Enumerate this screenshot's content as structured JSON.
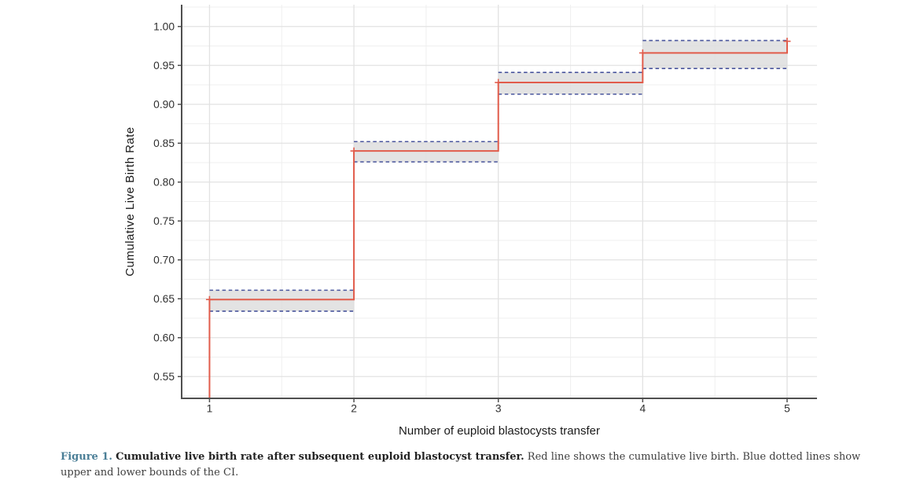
{
  "figure": {
    "caption": {
      "label": "Figure 1.",
      "bold_text": "Cumulative live birth rate after subsequent euploid blastocyst transfer.",
      "body_text": "Red line shows the cumulative live birth. Blue dotted lines show upper and lower bounds of the CI.",
      "label_color": "#4a7e96"
    }
  },
  "chart_data": {
    "type": "step",
    "title": "",
    "xlabel": "Number of euploid blastocysts transfer",
    "ylabel": "Cumulative Live Birth Rate",
    "xlim": [
      0.807,
      5.207
    ],
    "ylim": [
      0.522,
      1.028
    ],
    "grid": true,
    "legend_position": "none",
    "x_ticks": [
      {
        "value": 1,
        "label": "1"
      },
      {
        "value": 2,
        "label": "2"
      },
      {
        "value": 3,
        "label": "3"
      },
      {
        "value": 4,
        "label": "4"
      },
      {
        "value": 5,
        "label": "5"
      }
    ],
    "x_minor_ticks": [
      1.5,
      2.5,
      3.5,
      4.5
    ],
    "y_ticks": [
      {
        "value": 0.55,
        "label": "0.55"
      },
      {
        "value": 0.6,
        "label": "0.60"
      },
      {
        "value": 0.65,
        "label": "0.65"
      },
      {
        "value": 0.7,
        "label": "0.70"
      },
      {
        "value": 0.75,
        "label": "0.75"
      },
      {
        "value": 0.8,
        "label": "0.80"
      },
      {
        "value": 0.85,
        "label": "0.85"
      },
      {
        "value": 0.9,
        "label": "0.90"
      },
      {
        "value": 0.95,
        "label": "0.95"
      },
      {
        "value": 1.0,
        "label": "1.00"
      }
    ],
    "y_minor_ticks": [
      0.525,
      0.575,
      0.625,
      0.675,
      0.725,
      0.775,
      0.825,
      0.875,
      0.925,
      0.975,
      1.025
    ],
    "series": [
      {
        "name": "Cumulative live birth rate",
        "color": "#e15c4b",
        "ci_line_color": "#4a569d",
        "ci_band_color": "#dcdcdc",
        "starts_from_axis_bottom_at_x": 1,
        "steps": [
          {
            "x_start": 1,
            "x_end": 2,
            "estimate": 0.649,
            "ci_lower": 0.634,
            "ci_upper": 0.661
          },
          {
            "x_start": 2,
            "x_end": 3,
            "estimate": 0.84,
            "ci_lower": 0.826,
            "ci_upper": 0.852
          },
          {
            "x_start": 3,
            "x_end": 4,
            "estimate": 0.928,
            "ci_lower": 0.913,
            "ci_upper": 0.941
          },
          {
            "x_start": 4,
            "x_end": 5,
            "estimate": 0.966,
            "ci_lower": 0.946,
            "ci_upper": 0.982
          }
        ],
        "terminal": {
          "x": 5,
          "estimate": 0.981
        },
        "censor_marks": [
          {
            "x": 1,
            "y": 0.649
          },
          {
            "x": 2,
            "y": 0.84
          },
          {
            "x": 3,
            "y": 0.928
          },
          {
            "x": 4,
            "y": 0.966
          },
          {
            "x": 5,
            "y": 0.981
          }
        ]
      }
    ],
    "style_colors": {
      "axis_line": "#4f4f4f",
      "grid_major": "#e2e2e2",
      "grid_minor": "#efefef",
      "tick_label": "#303030",
      "axis_title": "#1a1a1a"
    }
  }
}
